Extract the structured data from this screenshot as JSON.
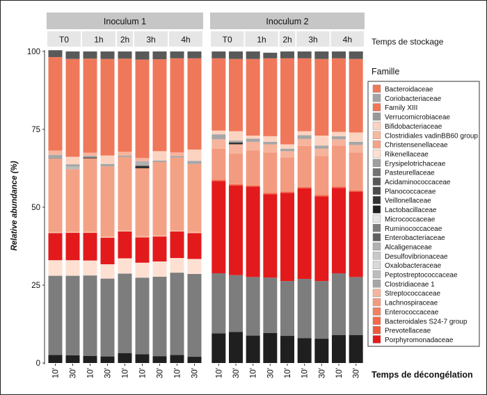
{
  "chart_data": {
    "type": "stacked-bar",
    "ylabel": "Relative abundance (%)",
    "ylim": [
      0,
      100
    ],
    "yticks": [
      0,
      25,
      50,
      75,
      100
    ],
    "facets": [
      "Inoculum 1",
      "Inoculum 2"
    ],
    "storage_axis_title": "Temps de stockage",
    "storage_groups": [
      {
        "label": "T0",
        "bars": 2
      },
      {
        "label": "1h",
        "bars": 2
      },
      {
        "label": "2h",
        "bars": 1
      },
      {
        "label": "3h",
        "bars": 2
      },
      {
        "label": "4h",
        "bars": 2
      }
    ],
    "xlabel": "Temps de décongélation",
    "x_ticks": [
      "10'",
      "30'",
      "10'",
      "30'",
      "10'",
      "10'",
      "30'",
      "10'",
      "30'"
    ],
    "legend_title": "Famille",
    "series": [
      {
        "name": "Porphyromonadaceae",
        "color": "#e31a1c"
      },
      {
        "name": "Prevotellaceae",
        "color": "#f05a3c"
      },
      {
        "name": "Bacteroidales S24-7 group",
        "color": "#f4694a"
      },
      {
        "name": "Enterococcaceae",
        "color": "#f08060"
      },
      {
        "name": "Lachnospiraceae",
        "color": "#f39b80"
      },
      {
        "name": "Streptococcaceae",
        "color": "#f6b49c"
      },
      {
        "name": "Clostridiaceae 1",
        "color": "#a6a6a6"
      },
      {
        "name": "Peptostreptococcaceae",
        "color": "#bdbdbd"
      },
      {
        "name": "Oxalobacteraceae",
        "color": "#d9d9d9"
      },
      {
        "name": "Desulfovibrionaceae",
        "color": "#c8c8c8"
      },
      {
        "name": "Alcaligenaceae",
        "color": "#b0b0b0"
      },
      {
        "name": "Enterobacteriaceae",
        "color": "#606060"
      },
      {
        "name": "Ruminococcaceae",
        "color": "#7d7d7d"
      },
      {
        "name": "Micrococcaceae",
        "color": "#e6e6e6"
      },
      {
        "name": "Lactobacillaceae",
        "color": "#1f1f1f"
      },
      {
        "name": "Veillonellaceae",
        "color": "#333333"
      },
      {
        "name": "Planococcaceae",
        "color": "#4d4d4d"
      },
      {
        "name": "Acidaminococcaceae",
        "color": "#595959"
      },
      {
        "name": "Pasteurellaceae",
        "color": "#737373"
      },
      {
        "name": "Erysipelotrichaceae",
        "color": "#9e9e9e"
      },
      {
        "name": "Rikenellaceae",
        "color": "#fde0d2"
      },
      {
        "name": "Christensenellaceae",
        "color": "#f4a286"
      },
      {
        "name": "Clostridiales vadinBB60 group",
        "color": "#f7b89e"
      },
      {
        "name": "Bifidobacteriaceae",
        "color": "#fbd3c0"
      },
      {
        "name": "Verrucomicrobiaceae",
        "color": "#999999"
      },
      {
        "name": "Family XIII",
        "color": "#f27556"
      },
      {
        "name": "Coriobacteriaceae",
        "color": "#a3a3a3"
      },
      {
        "name": "Bacteroidaceae",
        "color": "#f0785a"
      }
    ],
    "panels": [
      {
        "facet": "Inoculum 1",
        "bars": [
          {
            "segments": [
              [
                2.6,
                "#1f1f1f"
              ],
              [
                25.4,
                "#7d7d7d"
              ],
              [
                5,
                "#fde0d2"
              ],
              [
                8.7,
                "#e31a1c"
              ],
              [
                0.4,
                "#f7b89e"
              ],
              [
                23.5,
                "#f4a286"
              ],
              [
                0.4,
                "#999999"
              ],
              [
                0.8,
                "#a6a6a6"
              ],
              [
                1.4,
                "#f6b49c"
              ],
              [
                30,
                "#f0785a"
              ],
              [
                2.2,
                "#595959"
              ]
            ]
          },
          {
            "segments": [
              [
                2.5,
                "#1f1f1f"
              ],
              [
                25.5,
                "#7d7d7d"
              ],
              [
                5,
                "#fde0d2"
              ],
              [
                8.8,
                "#e31a1c"
              ],
              [
                0.4,
                "#f7b89e"
              ],
              [
                20,
                "#f4a286"
              ],
              [
                0.8,
                "#bdbdbd"
              ],
              [
                0.8,
                "#a6a6a6"
              ],
              [
                2.4,
                "#fbd3c0"
              ],
              [
                31.4,
                "#f0785a"
              ],
              [
                2.4,
                "#595959"
              ]
            ]
          },
          {
            "segments": [
              [
                2.3,
                "#1f1f1f"
              ],
              [
                25.8,
                "#7d7d7d"
              ],
              [
                4.8,
                "#fde0d2"
              ],
              [
                8.9,
                "#e31a1c"
              ],
              [
                0.4,
                "#f7b89e"
              ],
              [
                23.5,
                "#f4a286"
              ],
              [
                0.3,
                "#333333"
              ],
              [
                0.5,
                "#a6a6a6"
              ],
              [
                1,
                "#f6b49c"
              ],
              [
                30.2,
                "#f0785a"
              ],
              [
                2.3,
                "#595959"
              ]
            ]
          },
          {
            "segments": [
              [
                2.1,
                "#1f1f1f"
              ],
              [
                25,
                "#7d7d7d"
              ],
              [
                4.6,
                "#fde0d2"
              ],
              [
                8.5,
                "#e31a1c"
              ],
              [
                0.4,
                "#f7b89e"
              ],
              [
                22.5,
                "#f4a286"
              ],
              [
                0.8,
                "#a6a6a6"
              ],
              [
                2.7,
                "#fbd3c0"
              ],
              [
                31,
                "#f0785a"
              ],
              [
                2.4,
                "#595959"
              ]
            ]
          },
          {
            "segments": [
              [
                3.2,
                "#1f1f1f"
              ],
              [
                25.5,
                "#7d7d7d"
              ],
              [
                4.9,
                "#fde0d2"
              ],
              [
                8.6,
                "#e31a1c"
              ],
              [
                0.4,
                "#f7b89e"
              ],
              [
                23.5,
                "#f4a286"
              ],
              [
                0.5,
                "#a6a6a6"
              ],
              [
                1.2,
                "#f6b49c"
              ],
              [
                29.9,
                "#f0785a"
              ],
              [
                2.3,
                "#595959"
              ]
            ]
          },
          {
            "segments": [
              [
                2.8,
                "#1f1f1f"
              ],
              [
                24.6,
                "#7d7d7d"
              ],
              [
                4.8,
                "#fde0d2"
              ],
              [
                8.1,
                "#e31a1c"
              ],
              [
                0.4,
                "#f7b89e"
              ],
              [
                21.8,
                "#f4a286"
              ],
              [
                0.8,
                "#333333"
              ],
              [
                1.5,
                "#b0b0b0"
              ],
              [
                1,
                "#f6b49c"
              ],
              [
                31.6,
                "#f0785a"
              ],
              [
                2.6,
                "#595959"
              ]
            ]
          },
          {
            "segments": [
              [
                2.2,
                "#1f1f1f"
              ],
              [
                25.5,
                "#7d7d7d"
              ],
              [
                4.9,
                "#fde0d2"
              ],
              [
                8,
                "#e31a1c"
              ],
              [
                0.4,
                "#f7b89e"
              ],
              [
                23.5,
                "#f4a286"
              ],
              [
                0.5,
                "#a6a6a6"
              ],
              [
                3,
                "#fbd3c0"
              ],
              [
                29.5,
                "#f0785a"
              ],
              [
                2.5,
                "#595959"
              ]
            ]
          },
          {
            "segments": [
              [
                2.6,
                "#1f1f1f"
              ],
              [
                26.4,
                "#7d7d7d"
              ],
              [
                4.7,
                "#fde0d2"
              ],
              [
                8.5,
                "#e31a1c"
              ],
              [
                0.4,
                "#f7b89e"
              ],
              [
                23.3,
                "#f4a286"
              ],
              [
                0.5,
                "#a6a6a6"
              ],
              [
                1.2,
                "#f6b49c"
              ],
              [
                30.2,
                "#f0785a"
              ],
              [
                2.2,
                "#595959"
              ]
            ]
          },
          {
            "segments": [
              [
                2,
                "#1f1f1f"
              ],
              [
                26.6,
                "#7d7d7d"
              ],
              [
                4.8,
                "#fde0d2"
              ],
              [
                8.3,
                "#e31a1c"
              ],
              [
                0.4,
                "#f7b89e"
              ],
              [
                21.8,
                "#f4a286"
              ],
              [
                1,
                "#a6a6a6"
              ],
              [
                3.6,
                "#fbd3c0"
              ],
              [
                29.3,
                "#f0785a"
              ],
              [
                2.2,
                "#595959"
              ]
            ]
          }
        ]
      },
      {
        "facet": "Inoculum 2",
        "bars": [
          {
            "segments": [
              [
                9.5,
                "#1f1f1f"
              ],
              [
                19.3,
                "#7d7d7d"
              ],
              [
                29.6,
                "#e31a1c"
              ],
              [
                0.4,
                "#f4694a"
              ],
              [
                10,
                "#f39b80"
              ],
              [
                3,
                "#f6b49c"
              ],
              [
                1.6,
                "#a6a6a6"
              ],
              [
                1.2,
                "#fbd3c0"
              ],
              [
                23.2,
                "#f0785a"
              ],
              [
                2.2,
                "#595959"
              ]
            ]
          },
          {
            "segments": [
              [
                10,
                "#1f1f1f"
              ],
              [
                18.2,
                "#7d7d7d"
              ],
              [
                28.8,
                "#e31a1c"
              ],
              [
                0.4,
                "#f4694a"
              ],
              [
                9.8,
                "#f39b80"
              ],
              [
                3,
                "#f6b49c"
              ],
              [
                0.6,
                "#333333"
              ],
              [
                0.6,
                "#a6a6a6"
              ],
              [
                3,
                "#fbd3c0"
              ],
              [
                23.2,
                "#f0785a"
              ],
              [
                2.4,
                "#595959"
              ]
            ]
          },
          {
            "segments": [
              [
                8.8,
                "#1f1f1f"
              ],
              [
                18.8,
                "#7d7d7d"
              ],
              [
                29,
                "#e31a1c"
              ],
              [
                0.4,
                "#f4694a"
              ],
              [
                11.2,
                "#f39b80"
              ],
              [
                2.8,
                "#f6b49c"
              ],
              [
                1,
                "#a6a6a6"
              ],
              [
                1,
                "#fbd3c0"
              ],
              [
                24.6,
                "#f0785a"
              ],
              [
                2.4,
                "#595959"
              ]
            ]
          },
          {
            "segments": [
              [
                9.6,
                "#1f1f1f"
              ],
              [
                17.8,
                "#7d7d7d"
              ],
              [
                26.8,
                "#e31a1c"
              ],
              [
                0.4,
                "#f4694a"
              ],
              [
                13,
                "#f39b80"
              ],
              [
                2.6,
                "#f6b49c"
              ],
              [
                0.8,
                "#a6a6a6"
              ],
              [
                1.8,
                "#fbd3c0"
              ],
              [
                25,
                "#f0785a"
              ],
              [
                1.8,
                "#595959"
              ]
            ]
          },
          {
            "segments": [
              [
                8.7,
                "#1f1f1f"
              ],
              [
                17.6,
                "#7d7d7d"
              ],
              [
                28.3,
                "#e31a1c"
              ],
              [
                0.4,
                "#f4694a"
              ],
              [
                11,
                "#f39b80"
              ],
              [
                2,
                "#f6b49c"
              ],
              [
                0.8,
                "#a6a6a6"
              ],
              [
                1.4,
                "#fbd3c0"
              ],
              [
                27.6,
                "#f0785a"
              ],
              [
                2.2,
                "#595959"
              ]
            ]
          },
          {
            "segments": [
              [
                8,
                "#1f1f1f"
              ],
              [
                19,
                "#7d7d7d"
              ],
              [
                29.1,
                "#e31a1c"
              ],
              [
                0.4,
                "#f4694a"
              ],
              [
                13.2,
                "#f39b80"
              ],
              [
                2.2,
                "#f6b49c"
              ],
              [
                1.2,
                "#a6a6a6"
              ],
              [
                1.3,
                "#fbd3c0"
              ],
              [
                23.4,
                "#f0785a"
              ],
              [
                2.2,
                "#595959"
              ]
            ]
          },
          {
            "segments": [
              [
                7.8,
                "#1f1f1f"
              ],
              [
                18.5,
                "#7d7d7d"
              ],
              [
                27.2,
                "#e31a1c"
              ],
              [
                0.4,
                "#f4694a"
              ],
              [
                12.5,
                "#f39b80"
              ],
              [
                2.4,
                "#f6b49c"
              ],
              [
                1,
                "#a6a6a6"
              ],
              [
                3.2,
                "#fbd3c0"
              ],
              [
                24.6,
                "#f0785a"
              ],
              [
                2.4,
                "#595959"
              ]
            ]
          },
          {
            "segments": [
              [
                9,
                "#1f1f1f"
              ],
              [
                19.8,
                "#7d7d7d"
              ],
              [
                27.4,
                "#e31a1c"
              ],
              [
                0.4,
                "#f4694a"
              ],
              [
                13.2,
                "#f39b80"
              ],
              [
                2,
                "#f6b49c"
              ],
              [
                1,
                "#a6a6a6"
              ],
              [
                1.4,
                "#fbd3c0"
              ],
              [
                23.6,
                "#f0785a"
              ],
              [
                2.2,
                "#595959"
              ]
            ]
          },
          {
            "segments": [
              [
                9,
                "#1f1f1f"
              ],
              [
                18.6,
                "#7d7d7d"
              ],
              [
                27.4,
                "#e31a1c"
              ],
              [
                0.4,
                "#f4694a"
              ],
              [
                12.2,
                "#f39b80"
              ],
              [
                2.4,
                "#f6b49c"
              ],
              [
                1,
                "#a6a6a6"
              ],
              [
                3,
                "#fbd3c0"
              ],
              [
                23.6,
                "#f0785a"
              ],
              [
                2.4,
                "#595959"
              ]
            ]
          }
        ]
      }
    ]
  }
}
